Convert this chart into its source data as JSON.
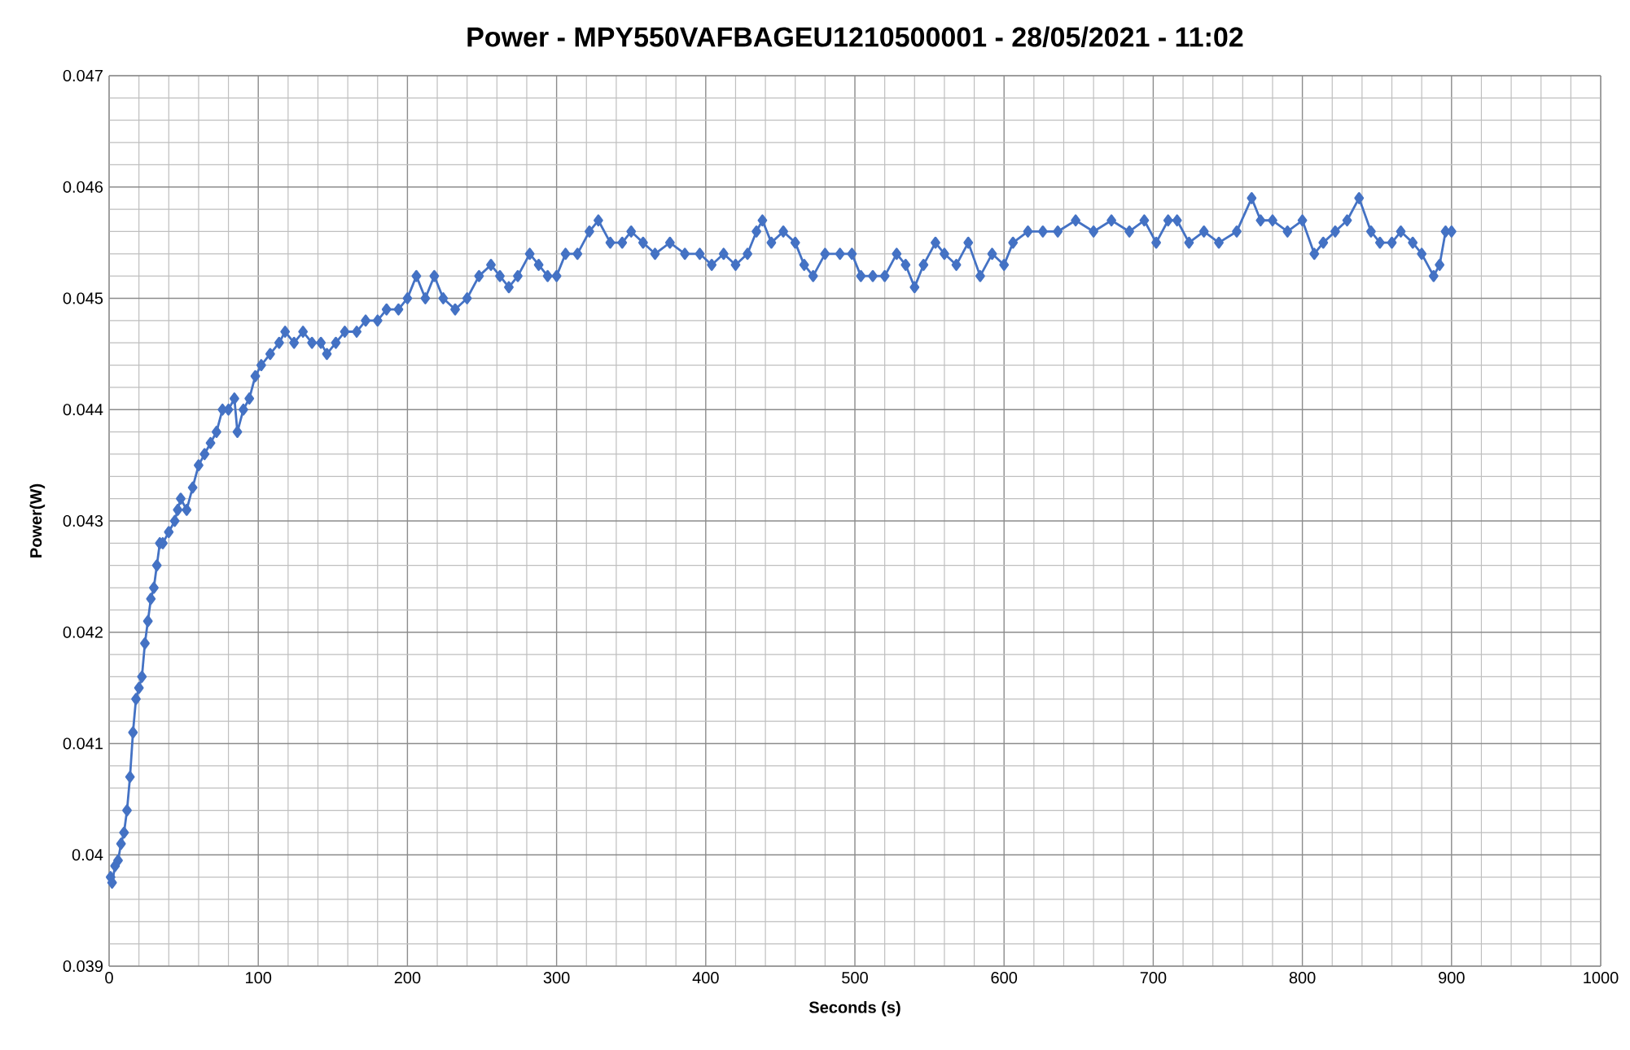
{
  "chart_data": {
    "type": "line",
    "title": "Power - MPY550VAFBAGEU1210500001 - 28/05/2021 - 11:02",
    "xlabel": "Seconds (s)",
    "ylabel": "Power(W)",
    "xlim": [
      0,
      1000
    ],
    "ylim": [
      0.039,
      0.047
    ],
    "xticks": [
      0,
      100,
      200,
      300,
      400,
      500,
      600,
      700,
      800,
      900,
      1000
    ],
    "yticks": [
      0.039,
      0.04,
      0.041,
      0.042,
      0.043,
      0.044,
      0.045,
      0.046,
      0.047
    ],
    "grid": true,
    "marker": "diamond",
    "line_style": "solid",
    "series": [
      {
        "color": "#4472c4",
        "x": [
          1,
          2,
          4,
          6,
          8,
          10,
          12,
          14,
          16,
          18,
          20,
          22,
          24,
          26,
          28,
          30,
          32,
          34,
          36,
          40,
          44,
          46,
          48,
          52,
          56,
          60,
          64,
          68,
          72,
          76,
          80,
          84,
          86,
          90,
          94,
          98,
          102,
          108,
          114,
          118,
          124,
          130,
          136,
          142,
          146,
          152,
          158,
          166,
          172,
          180,
          186,
          194,
          200,
          206,
          212,
          218,
          224,
          232,
          240,
          248,
          256,
          262,
          268,
          274,
          282,
          288,
          294,
          300,
          306,
          314,
          322,
          328,
          336,
          344,
          350,
          358,
          366,
          376,
          386,
          396,
          404,
          412,
          420,
          428,
          434,
          438,
          444,
          452,
          460,
          466,
          472,
          480,
          490,
          498,
          504,
          512,
          520,
          528,
          534,
          540,
          546,
          554,
          560,
          568,
          576,
          584,
          592,
          600,
          606,
          616,
          626,
          636,
          648,
          660,
          672,
          684,
          694,
          702,
          710,
          716,
          724,
          734,
          744,
          756,
          766,
          772,
          780,
          790,
          800,
          808,
          814,
          822,
          830,
          838,
          846,
          852,
          860,
          866,
          874,
          880,
          888,
          892,
          896,
          900
        ],
        "values": [
          0.0398,
          0.03975,
          0.0399,
          0.03995,
          0.0401,
          0.0402,
          0.0404,
          0.0407,
          0.0411,
          0.0414,
          0.0415,
          0.0416,
          0.0419,
          0.0421,
          0.0423,
          0.0424,
          0.0426,
          0.0428,
          0.0428,
          0.0429,
          0.043,
          0.0431,
          0.0432,
          0.0431,
          0.0433,
          0.0435,
          0.0436,
          0.0437,
          0.0438,
          0.044,
          0.044,
          0.0441,
          0.0438,
          0.044,
          0.0441,
          0.0443,
          0.0444,
          0.0445,
          0.0446,
          0.0447,
          0.0446,
          0.0447,
          0.0446,
          0.0446,
          0.0445,
          0.0446,
          0.0447,
          0.0447,
          0.0448,
          0.0448,
          0.0449,
          0.0449,
          0.045,
          0.0452,
          0.045,
          0.0452,
          0.045,
          0.0449,
          0.045,
          0.0452,
          0.0453,
          0.0452,
          0.0451,
          0.0452,
          0.0454,
          0.0453,
          0.0452,
          0.0452,
          0.0454,
          0.0454,
          0.0456,
          0.0457,
          0.0455,
          0.0455,
          0.0456,
          0.0455,
          0.0454,
          0.0455,
          0.0454,
          0.0454,
          0.0453,
          0.0454,
          0.0453,
          0.0454,
          0.0456,
          0.0457,
          0.0455,
          0.0456,
          0.0455,
          0.0453,
          0.0452,
          0.0454,
          0.0454,
          0.0454,
          0.0452,
          0.0452,
          0.0452,
          0.0454,
          0.0453,
          0.0451,
          0.0453,
          0.0455,
          0.0454,
          0.0453,
          0.0455,
          0.0452,
          0.0454,
          0.0453,
          0.0455,
          0.0456,
          0.0456,
          0.0456,
          0.0457,
          0.0456,
          0.0457,
          0.0456,
          0.0457,
          0.0455,
          0.0457,
          0.0457,
          0.0455,
          0.0456,
          0.0455,
          0.0456,
          0.0459,
          0.0457,
          0.0457,
          0.0456,
          0.0457,
          0.0454,
          0.0455,
          0.0456,
          0.0457,
          0.0459,
          0.0456,
          0.0455,
          0.0455,
          0.0456,
          0.0455,
          0.0454,
          0.0452,
          0.0453,
          0.0456,
          0.0456
        ]
      }
    ]
  }
}
